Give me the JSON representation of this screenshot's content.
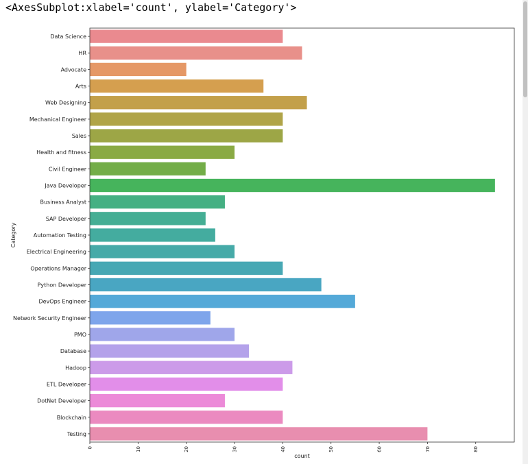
{
  "output": {
    "repr_text": "<AxesSubplot:xlabel='count', ylabel='Category'>"
  },
  "chart_data": {
    "type": "bar",
    "orientation": "horizontal",
    "title": "",
    "xlabel": "count",
    "ylabel": "Category",
    "xlim": [
      0,
      88
    ],
    "xticks": [
      0,
      10,
      20,
      30,
      40,
      50,
      60,
      70,
      80
    ],
    "grid": false,
    "categories": [
      "Data Science",
      "HR",
      "Advocate",
      "Arts",
      "Web Designing",
      "Mechanical Engineer",
      "Sales",
      "Health and fitness",
      "Civil Engineer",
      "Java Developer",
      "Business Analyst",
      "SAP Developer",
      "Automation Testing",
      "Electrical Engineering",
      "Operations Manager",
      "Python Developer",
      "DevOps Engineer",
      "Network Security Engineer",
      "PMO",
      "Database",
      "Hadoop",
      "ETL Developer",
      "DotNet Developer",
      "Blockchain",
      "Testing"
    ],
    "values": [
      40,
      44,
      20,
      36,
      45,
      40,
      40,
      30,
      24,
      84,
      28,
      24,
      26,
      30,
      40,
      48,
      55,
      25,
      30,
      33,
      42,
      40,
      28,
      40,
      70
    ],
    "colors": [
      "#ea8a8f",
      "#e8908a",
      "#e59866",
      "#d59f4f",
      "#c3a04a",
      "#b0a448",
      "#9da646",
      "#8aaa44",
      "#73ad48",
      "#46b45c",
      "#45b083",
      "#45ae94",
      "#44ac9f",
      "#46aaa8",
      "#47a8b4",
      "#49a6c2",
      "#54a9d8",
      "#7ea5eb",
      "#9fa6ea",
      "#b4a2ea",
      "#cc9be9",
      "#e28ee9",
      "#ec8ad8",
      "#eb8ac0",
      "#e88eaf"
    ]
  }
}
